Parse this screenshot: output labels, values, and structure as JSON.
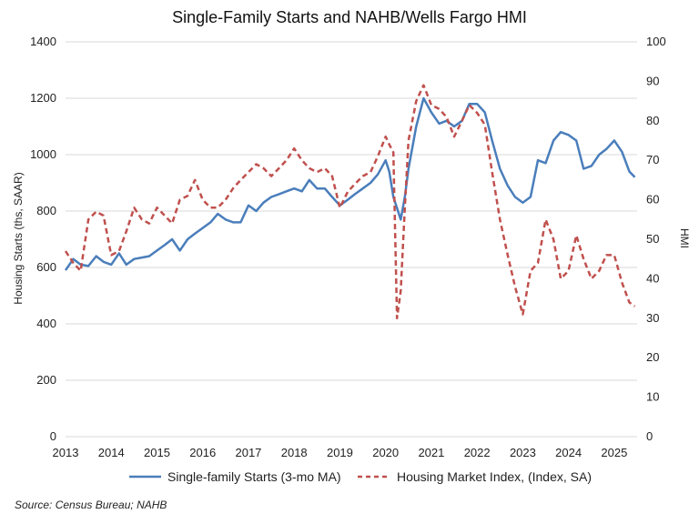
{
  "chart_data": {
    "type": "line",
    "title": "Single-Family Starts and NAHB/Wells Fargo HMI",
    "ylabel_left": "Housing Starts (ths, SAAR)",
    "ylabel_right": "HMI",
    "ylim_left": [
      0,
      1400
    ],
    "ylim_right": [
      0,
      100
    ],
    "yticks_left": [
      0,
      200,
      400,
      600,
      800,
      1000,
      1200,
      1400
    ],
    "yticks_right": [
      0,
      10,
      20,
      30,
      40,
      50,
      60,
      70,
      80,
      90,
      100
    ],
    "xlim": [
      2013,
      2025.5
    ],
    "xticks": [
      2013,
      2014,
      2015,
      2016,
      2017,
      2018,
      2019,
      2020,
      2021,
      2022,
      2023,
      2024,
      2025
    ],
    "grid": "horizontal",
    "legend_position": "bottom",
    "series": [
      {
        "name": "Single-family Starts (3-mo MA)",
        "axis": "left",
        "color": "#4a7ebb",
        "style": "solid",
        "x": [
          2013.0,
          2013.17,
          2013.33,
          2013.5,
          2013.67,
          2013.83,
          2014.0,
          2014.17,
          2014.33,
          2014.5,
          2014.67,
          2014.83,
          2015.0,
          2015.17,
          2015.33,
          2015.5,
          2015.67,
          2015.83,
          2016.0,
          2016.17,
          2016.33,
          2016.5,
          2016.67,
          2016.83,
          2017.0,
          2017.17,
          2017.33,
          2017.5,
          2017.67,
          2017.83,
          2018.0,
          2018.17,
          2018.33,
          2018.5,
          2018.67,
          2018.83,
          2019.0,
          2019.17,
          2019.33,
          2019.5,
          2019.67,
          2019.83,
          2020.0,
          2020.08,
          2020.17,
          2020.33,
          2020.42,
          2020.5,
          2020.67,
          2020.83,
          2021.0,
          2021.17,
          2021.33,
          2021.5,
          2021.67,
          2021.83,
          2022.0,
          2022.17,
          2022.33,
          2022.5,
          2022.67,
          2022.83,
          2023.0,
          2023.17,
          2023.33,
          2023.5,
          2023.67,
          2023.83,
          2024.0,
          2024.17,
          2024.33,
          2024.5,
          2024.67,
          2024.83,
          2025.0,
          2025.17,
          2025.33,
          2025.45
        ],
        "y": [
          590,
          630,
          610,
          605,
          640,
          620,
          610,
          650,
          610,
          630,
          635,
          640,
          660,
          680,
          700,
          660,
          700,
          720,
          740,
          760,
          790,
          770,
          760,
          760,
          820,
          800,
          830,
          850,
          860,
          870,
          880,
          870,
          910,
          880,
          880,
          850,
          820,
          840,
          860,
          880,
          900,
          930,
          980,
          940,
          850,
          770,
          850,
          950,
          1100,
          1200,
          1150,
          1110,
          1120,
          1100,
          1120,
          1180,
          1180,
          1150,
          1050,
          950,
          890,
          850,
          830,
          850,
          980,
          970,
          1050,
          1080,
          1070,
          1050,
          950,
          960,
          1000,
          1020,
          1050,
          1010,
          940,
          920
        ]
      },
      {
        "name": "Housing Market Index, (Index, SA)",
        "axis": "right",
        "color": "#c0504d",
        "style": "dashed",
        "x": [
          2013.0,
          2013.17,
          2013.33,
          2013.5,
          2013.67,
          2013.83,
          2014.0,
          2014.17,
          2014.33,
          2014.5,
          2014.67,
          2014.83,
          2015.0,
          2015.17,
          2015.33,
          2015.5,
          2015.67,
          2015.83,
          2016.0,
          2016.17,
          2016.33,
          2016.5,
          2016.67,
          2016.83,
          2017.0,
          2017.17,
          2017.33,
          2017.5,
          2017.67,
          2017.83,
          2018.0,
          2018.17,
          2018.33,
          2018.5,
          2018.67,
          2018.83,
          2019.0,
          2019.17,
          2019.33,
          2019.5,
          2019.67,
          2019.83,
          2020.0,
          2020.08,
          2020.17,
          2020.25,
          2020.33,
          2020.42,
          2020.5,
          2020.67,
          2020.83,
          2021.0,
          2021.17,
          2021.33,
          2021.5,
          2021.67,
          2021.83,
          2022.0,
          2022.17,
          2022.33,
          2022.5,
          2022.67,
          2022.83,
          2023.0,
          2023.17,
          2023.33,
          2023.5,
          2023.67,
          2023.83,
          2024.0,
          2024.17,
          2024.33,
          2024.5,
          2024.67,
          2024.83,
          2025.0,
          2025.17,
          2025.33,
          2025.45
        ],
        "y": [
          47,
          44,
          42,
          55,
          57,
          56,
          46,
          47,
          52,
          58,
          55,
          54,
          58,
          56,
          54,
          60,
          61,
          65,
          60,
          58,
          58,
          60,
          63,
          65,
          67,
          69,
          68,
          66,
          68,
          70,
          73,
          70,
          68,
          67,
          68,
          66,
          58,
          62,
          64,
          66,
          67,
          71,
          76,
          74,
          72,
          30,
          37,
          58,
          75,
          85,
          89,
          84,
          83,
          81,
          76,
          80,
          84,
          82,
          79,
          67,
          55,
          46,
          38,
          31,
          42,
          44,
          55,
          50,
          40,
          42,
          51,
          45,
          40,
          42,
          46,
          46,
          39,
          34,
          33
        ]
      }
    ]
  },
  "source": "Source: Census Bureau; NAHB"
}
